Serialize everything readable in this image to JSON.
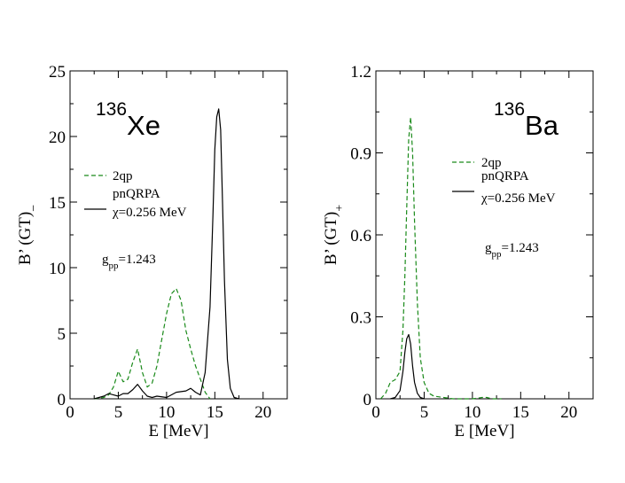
{
  "chart_data": [
    {
      "type": "line",
      "nucleus": {
        "mass": "136",
        "element": "Xe"
      },
      "xlabel": "E [MeV]",
      "ylabel": "B’ (GT)",
      "ylabel_sub": "−",
      "xlim": [
        0,
        22.5
      ],
      "ylim": [
        0,
        25
      ],
      "xticks": [
        "0",
        "5",
        "10",
        "15",
        "20"
      ],
      "xtick_values": [
        0,
        5,
        10,
        15,
        20
      ],
      "yticks": [
        "0",
        "5",
        "10",
        "15",
        "20",
        "25"
      ],
      "ytick_values": [
        0,
        5,
        10,
        15,
        20,
        25
      ],
      "legend": [
        {
          "label": "2qp",
          "style": "dashed",
          "color": "#1a8a1a"
        },
        {
          "label": "pnQRPA",
          "label2": "χ=0.256 MeV",
          "style": "solid",
          "color": "#000000"
        }
      ],
      "gpp_label": "g",
      "gpp_sub": "pp",
      "gpp_value": "=1.243",
      "series": [
        {
          "name": "2qp",
          "style": "dashed",
          "color": "#1a8a1a",
          "x": [
            2.5,
            3.5,
            4.0,
            4.5,
            5.0,
            5.5,
            6.0,
            6.5,
            7.0,
            7.5,
            8.0,
            8.5,
            9.0,
            9.5,
            10.0,
            10.5,
            11.0,
            11.5,
            12.0,
            12.5,
            13.0,
            13.5,
            14.0,
            14.5
          ],
          "y": [
            0,
            0.1,
            0.3,
            0.9,
            2.1,
            1.3,
            1.5,
            2.8,
            3.8,
            2.0,
            0.9,
            1.2,
            2.5,
            4.5,
            6.5,
            8.0,
            8.4,
            7.5,
            5.2,
            3.8,
            2.5,
            1.5,
            0.5,
            0
          ]
        },
        {
          "name": "pnQRPA",
          "style": "solid",
          "color": "#000000",
          "x": [
            2.5,
            3.5,
            4.0,
            4.5,
            5.0,
            5.5,
            6.0,
            6.5,
            7.0,
            7.5,
            8.0,
            8.5,
            9.0,
            10.0,
            11.0,
            12.0,
            12.5,
            13.0,
            13.5,
            14.0,
            14.5,
            14.8,
            15.0,
            15.2,
            15.4,
            15.6,
            15.8,
            16.0,
            16.3,
            16.6,
            17.0,
            17.5
          ],
          "y": [
            0,
            0.2,
            0.4,
            0.3,
            0.2,
            0.4,
            0.4,
            0.7,
            1.1,
            0.6,
            0.2,
            0.1,
            0.2,
            0.1,
            0.5,
            0.6,
            0.8,
            0.5,
            0.3,
            2.0,
            7.0,
            14.0,
            19.0,
            21.5,
            22.1,
            20.5,
            15.0,
            9.0,
            3.0,
            0.8,
            0.1,
            0
          ]
        }
      ]
    },
    {
      "type": "line",
      "nucleus": {
        "mass": "136",
        "element": "Ba"
      },
      "xlabel": "E [MeV]",
      "ylabel": "B’ (GT)",
      "ylabel_sub": "+",
      "xlim": [
        0,
        22.5
      ],
      "ylim": [
        0,
        1.2
      ],
      "xticks": [
        "0",
        "5",
        "10",
        "15",
        "20"
      ],
      "xtick_values": [
        0,
        5,
        10,
        15,
        20
      ],
      "yticks": [
        "0",
        "0.3",
        "0.6",
        "0.9",
        "1.2"
      ],
      "ytick_values": [
        0,
        0.3,
        0.6,
        0.9,
        1.2
      ],
      "legend": [
        {
          "label": "2qp",
          "style": "dashed",
          "color": "#1a8a1a"
        },
        {
          "label": "pnQRPA",
          "label2": "χ=0.256 MeV",
          "style": "solid",
          "color": "#000000"
        }
      ],
      "gpp_label": "g",
      "gpp_sub": "pp",
      "gpp_value": "=1.243",
      "series": [
        {
          "name": "2qp",
          "style": "dashed",
          "color": "#1a8a1a",
          "x": [
            0.5,
            1.0,
            1.5,
            2.0,
            2.5,
            2.8,
            3.0,
            3.2,
            3.4,
            3.6,
            3.8,
            4.0,
            4.3,
            4.6,
            5.0,
            5.5,
            6.0,
            7.0,
            8.0,
            10.0,
            11.0,
            11.5,
            12.0,
            13.0
          ],
          "y": [
            0,
            0.02,
            0.06,
            0.07,
            0.1,
            0.25,
            0.45,
            0.7,
            0.95,
            1.03,
            0.9,
            0.65,
            0.35,
            0.15,
            0.06,
            0.02,
            0.01,
            0.005,
            0,
            0,
            0.005,
            0.005,
            0,
            0
          ]
        },
        {
          "name": "pnQRPA",
          "style": "solid",
          "color": "#000000",
          "x": [
            1.5,
            2.0,
            2.5,
            2.8,
            3.0,
            3.2,
            3.4,
            3.6,
            3.8,
            4.0,
            4.3,
            4.6,
            5.0
          ],
          "y": [
            0,
            0.005,
            0.03,
            0.1,
            0.17,
            0.22,
            0.235,
            0.2,
            0.12,
            0.06,
            0.02,
            0.005,
            0
          ]
        }
      ]
    }
  ]
}
